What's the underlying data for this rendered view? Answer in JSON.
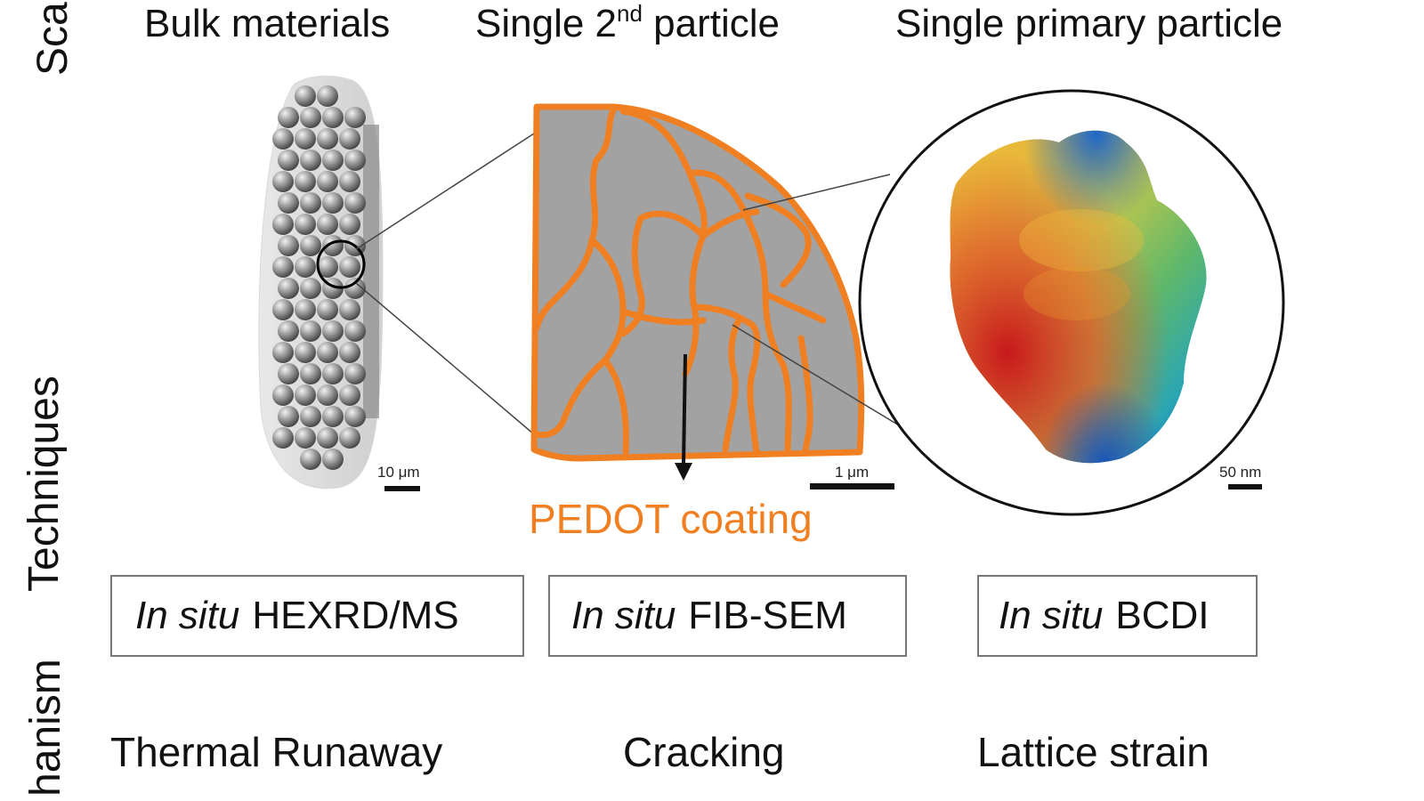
{
  "row_labels": {
    "scale": "Sca",
    "techniques": "Techniques",
    "mechanism": "hanism"
  },
  "headers": {
    "bulk": "Bulk materials",
    "secondary_pre": "Single 2",
    "secondary_sup": "nd",
    "secondary_post": " particle",
    "primary": "Single primary particle"
  },
  "scale_bars": {
    "bulk": "10 μm",
    "secondary": "1 μm",
    "primary": "50 nm"
  },
  "pedot_label": "PEDOT coating",
  "techniques": [
    {
      "italic": "In situ",
      "name": "HEXRD/MS"
    },
    {
      "italic": "In situ",
      "name": "FIB-SEM"
    },
    {
      "italic": "In situ",
      "name": "BCDI"
    }
  ],
  "mechanisms": [
    "Thermal Runaway",
    "Cracking",
    "Lattice strain"
  ],
  "colors": {
    "coating": "#f07f22",
    "particle": "#a0a0a0",
    "box_border": "#777777"
  }
}
